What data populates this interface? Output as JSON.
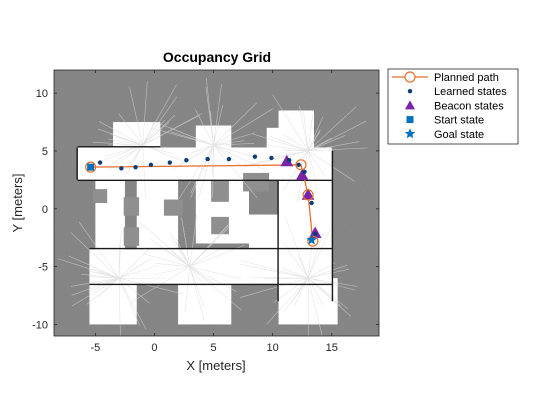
{
  "chart_data": {
    "type": "scatter",
    "title": "Occupancy Grid",
    "xlabel": "X [meters]",
    "ylabel": "Y [meters]",
    "xlim": [
      -8.5,
      19
    ],
    "ylim": [
      -11,
      12
    ],
    "x_ticks": [
      -5,
      0,
      5,
      10,
      15
    ],
    "y_ticks": [
      -10,
      -5,
      0,
      5,
      10
    ],
    "grid": false,
    "legend_position": "outside-top-right",
    "background": "occupancy map image (gray unknown, white free space, black walls)",
    "series": [
      {
        "name": "Planned path",
        "kind": "line-with-circle-markers",
        "color": "#e8702a",
        "x": [
          -5.4,
          12.4,
          13.0,
          13.4
        ],
        "y": [
          3.6,
          3.8,
          1.2,
          -2.8
        ]
      },
      {
        "name": "Learned states",
        "kind": "points",
        "color": "#0a3d7a",
        "x": [
          -4.6,
          -2.8,
          -1.6,
          -0.3,
          1.3,
          2.7,
          4.5,
          6.3,
          8.5,
          9.9,
          11.4,
          12.2,
          12.7,
          13.3,
          13.6
        ],
        "y": [
          4.0,
          3.5,
          3.6,
          3.8,
          4.0,
          4.2,
          4.3,
          4.3,
          4.5,
          4.4,
          4.2,
          3.8,
          3.2,
          0.5,
          -2.2
        ]
      },
      {
        "name": "Beacon states",
        "kind": "triangles",
        "color": "#7a22a8",
        "x": [
          11.2,
          12.5,
          13.0,
          13.6
        ],
        "y": [
          4.1,
          2.9,
          1.2,
          -2.1
        ]
      },
      {
        "name": "Start state",
        "kind": "square",
        "color": "#0072bd",
        "x": [
          -5.4
        ],
        "y": [
          3.6
        ]
      },
      {
        "name": "Goal state",
        "kind": "star",
        "color": "#0072bd",
        "x": [
          13.3
        ],
        "y": [
          -2.7
        ]
      }
    ]
  }
}
